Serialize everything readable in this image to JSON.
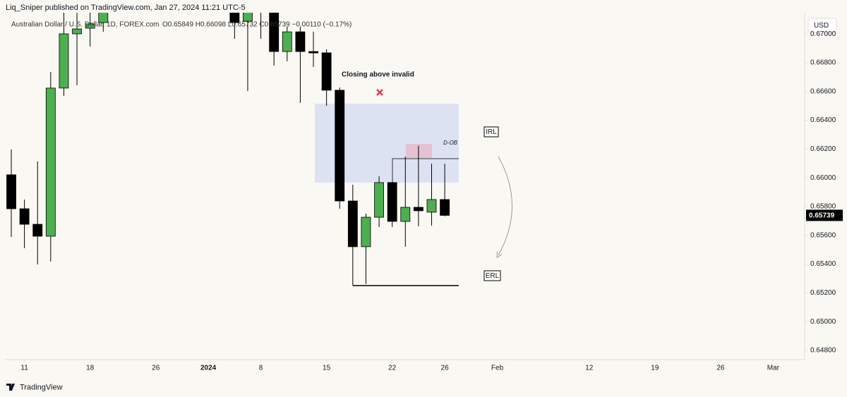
{
  "chart_data": {
    "type": "candlestick",
    "subtitle": "Liq_Sniper published on TradingView.com, Jan 27, 2024 11:21 UTC-5",
    "title": "Australian Dollar / U.S. Dollar, 1D, FOREX.com",
    "legend_text": "O0.65849  H0.66098  L0.65732  C0.65739  −0.00110 (−0.17%)",
    "currency": "USD",
    "brand": "TradingView",
    "up_color": "#4caf50",
    "down_color": "#000000",
    "grid": false,
    "x": [
      0,
      1,
      2,
      3,
      4,
      5,
      6,
      7,
      17,
      18,
      19,
      20,
      21,
      22,
      23,
      24,
      25,
      26,
      27,
      28,
      29,
      30,
      31,
      32,
      33
    ],
    "open": [
      0.66021,
      0.65785,
      0.65677,
      0.65594,
      0.66624,
      0.67001,
      0.6704,
      0.67079,
      0.6718,
      0.67089,
      0.6725,
      0.6722,
      0.66878,
      0.67015,
      0.66878,
      0.66869,
      0.66609,
      0.65839,
      0.65521,
      0.65726,
      0.65967,
      0.65697,
      0.65795,
      0.65761,
      0.65849
    ],
    "high": [
      0.66197,
      0.65849,
      0.66114,
      0.66736,
      0.67148,
      0.6715,
      0.6715,
      0.6722,
      0.6722,
      0.6722,
      0.673,
      0.6725,
      0.6705,
      0.6705,
      0.67016,
      0.66893,
      0.66628,
      0.65952,
      0.65751,
      0.66011,
      0.65972,
      0.66148,
      0.66222,
      0.66099,
      0.66098
    ],
    "low": [
      0.65589,
      0.65511,
      0.65398,
      0.65418,
      0.6657,
      0.66643,
      0.66913,
      0.67016,
      0.66967,
      0.66603,
      0.66967,
      0.6678,
      0.6681,
      0.66521,
      0.66771,
      0.66501,
      0.65785,
      0.65251,
      0.65261,
      0.65658,
      0.65658,
      0.65521,
      0.65663,
      0.65668,
      0.65732
    ],
    "close": [
      0.65785,
      0.65677,
      0.65594,
      0.66624,
      0.67001,
      0.67035,
      0.6707,
      0.6716,
      0.67079,
      0.6716,
      0.672,
      0.66878,
      0.67015,
      0.66878,
      0.66869,
      0.66609,
      0.65839,
      0.65521,
      0.65726,
      0.65967,
      0.65697,
      0.65795,
      0.65771,
      0.65849,
      0.65739
    ],
    "xlim": [
      -0.43,
      60.4
    ],
    "xticks": [
      {
        "value": 1,
        "label": "11"
      },
      {
        "value": 6,
        "label": "18"
      },
      {
        "value": 11,
        "label": "26"
      },
      {
        "value": 15,
        "label": "2024"
      },
      {
        "value": 19,
        "label": "8"
      },
      {
        "value": 24,
        "label": "15"
      },
      {
        "value": 29,
        "label": "22"
      },
      {
        "value": 33,
        "label": "26"
      },
      {
        "value": 37,
        "label": "Feb"
      },
      {
        "value": 44,
        "label": "12"
      },
      {
        "value": 49,
        "label": "19"
      },
      {
        "value": 54,
        "label": "26"
      },
      {
        "value": 58,
        "label": "Mar"
      }
    ],
    "ylim": [
      0.64736,
      0.67148
    ],
    "yticks": [
      {
        "value": 0.67,
        "label": "0.67000"
      },
      {
        "value": 0.668,
        "label": "0.66800"
      },
      {
        "value": 0.666,
        "label": "0.66600"
      },
      {
        "value": 0.664,
        "label": "0.66400"
      },
      {
        "value": 0.662,
        "label": "0.66200"
      },
      {
        "value": 0.66,
        "label": "0.66000"
      },
      {
        "value": 0.658,
        "label": "0.65800"
      },
      {
        "value": 0.656,
        "label": "0.65600"
      },
      {
        "value": 0.654,
        "label": "0.65400"
      },
      {
        "value": 0.652,
        "label": "0.65200"
      },
      {
        "value": 0.65,
        "label": "0.65000"
      },
      {
        "value": 0.648,
        "label": "0.64800"
      }
    ],
    "last_price": 0.65739,
    "annotations": [
      {
        "text": "Closing above invalid"
      },
      {
        "text": "D-OB"
      },
      {
        "text": "IRL"
      },
      {
        "text": "ERL"
      }
    ]
  }
}
